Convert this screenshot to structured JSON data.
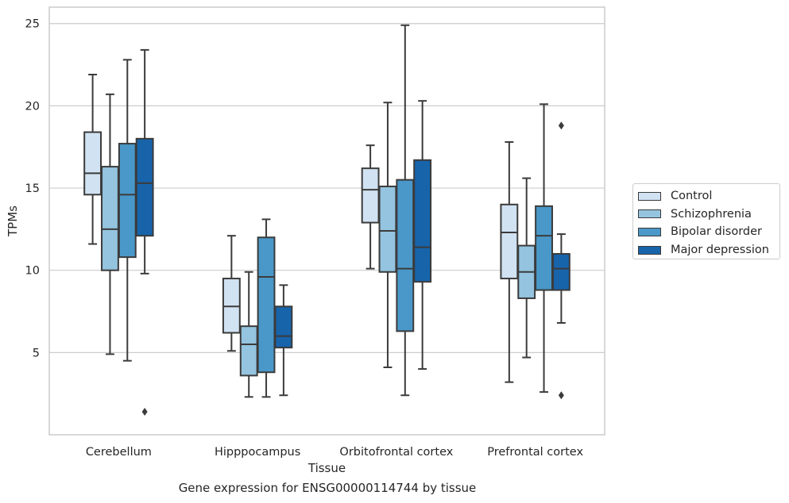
{
  "caption": "Gene expression for ENSG00000114744 by tissue",
  "chart_data": {
    "type": "box",
    "xlabel": "Tissue",
    "ylabel": "TPMs",
    "ylim": [
      0,
      26
    ],
    "yticks": [
      5,
      10,
      15,
      20,
      25
    ],
    "grid": "horizontal",
    "legend_position": "right",
    "categories": [
      "Cerebellum",
      "Hipppocampus",
      "Orbitofrontal cortex",
      "Prefrontal cortex"
    ],
    "series": [
      {
        "name": "Control",
        "color": "#d1e2f2",
        "boxes": [
          {
            "whislo": 11.6,
            "q1": 14.6,
            "med": 15.9,
            "q3": 18.4,
            "whishi": 21.9,
            "fliers": []
          },
          {
            "whislo": 5.1,
            "q1": 6.2,
            "med": 7.8,
            "q3": 9.5,
            "whishi": 12.1,
            "fliers": []
          },
          {
            "whislo": 10.1,
            "q1": 12.9,
            "med": 14.9,
            "q3": 16.2,
            "whishi": 17.6,
            "fliers": []
          },
          {
            "whislo": 3.2,
            "q1": 9.5,
            "med": 12.3,
            "q3": 14.0,
            "whishi": 17.8,
            "fliers": []
          }
        ]
      },
      {
        "name": "Schizophrenia",
        "color": "#94c4df",
        "boxes": [
          {
            "whislo": 4.9,
            "q1": 10.0,
            "med": 12.5,
            "q3": 16.3,
            "whishi": 20.7,
            "fliers": []
          },
          {
            "whislo": 2.3,
            "q1": 3.6,
            "med": 5.5,
            "q3": 6.6,
            "whishi": 9.9,
            "fliers": []
          },
          {
            "whislo": 4.1,
            "q1": 9.9,
            "med": 12.4,
            "q3": 15.1,
            "whishi": 20.2,
            "fliers": []
          },
          {
            "whislo": 4.7,
            "q1": 8.3,
            "med": 9.9,
            "q3": 11.5,
            "whishi": 15.6,
            "fliers": []
          }
        ]
      },
      {
        "name": "Bipolar disorder",
        "color": "#4a98c9",
        "boxes": [
          {
            "whislo": 4.5,
            "q1": 10.8,
            "med": 14.6,
            "q3": 17.7,
            "whishi": 22.8,
            "fliers": []
          },
          {
            "whislo": 2.3,
            "q1": 3.8,
            "med": 9.6,
            "q3": 12.0,
            "whishi": 13.1,
            "fliers": []
          },
          {
            "whislo": 2.4,
            "q1": 6.3,
            "med": 10.1,
            "q3": 15.5,
            "whishi": 24.9,
            "fliers": []
          },
          {
            "whislo": 2.6,
            "q1": 8.8,
            "med": 12.1,
            "q3": 13.9,
            "whishi": 20.1,
            "fliers": []
          }
        ]
      },
      {
        "name": "Major depression",
        "color": "#1764ab",
        "boxes": [
          {
            "whislo": 9.8,
            "q1": 12.1,
            "med": 15.3,
            "q3": 18.0,
            "whishi": 23.4,
            "fliers": [
              1.4
            ]
          },
          {
            "whislo": 2.4,
            "q1": 5.3,
            "med": 6.0,
            "q3": 7.8,
            "whishi": 9.1,
            "fliers": []
          },
          {
            "whislo": 4.0,
            "q1": 9.3,
            "med": 11.4,
            "q3": 16.7,
            "whishi": 20.3,
            "fliers": []
          },
          {
            "whislo": 6.8,
            "q1": 8.8,
            "med": 10.1,
            "q3": 11.0,
            "whishi": 12.2,
            "fliers": [
              18.8,
              2.4
            ]
          }
        ]
      }
    ]
  }
}
